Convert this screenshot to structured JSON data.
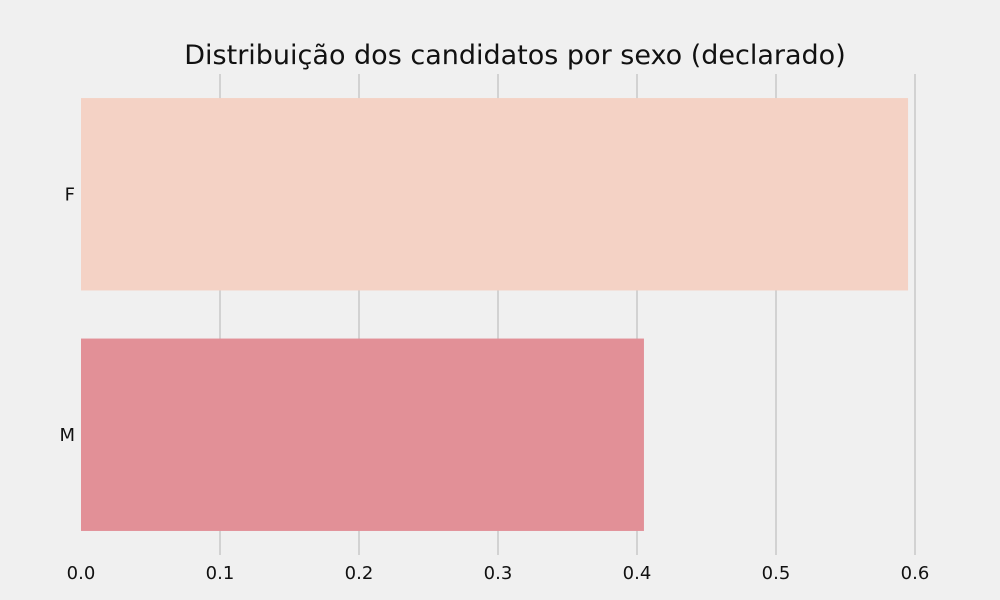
{
  "chart_data": {
    "type": "bar",
    "orientation": "horizontal",
    "title": "Distribuição dos candidatos por sexo (declarado)",
    "xlabel": "",
    "ylabel": "",
    "categories": [
      "F",
      "M"
    ],
    "values": [
      0.595,
      0.405
    ],
    "colors": [
      "#f4d2c5",
      "#e29097"
    ],
    "xlim": [
      0,
      0.65
    ],
    "xticks": [
      0.0,
      0.1,
      0.2,
      0.3,
      0.4,
      0.5,
      0.6
    ],
    "xtick_labels": [
      "0.0",
      "0.1",
      "0.2",
      "0.3",
      "0.4",
      "0.5",
      "0.6"
    ],
    "grid": "vertical",
    "background": "#f0f0f0"
  }
}
